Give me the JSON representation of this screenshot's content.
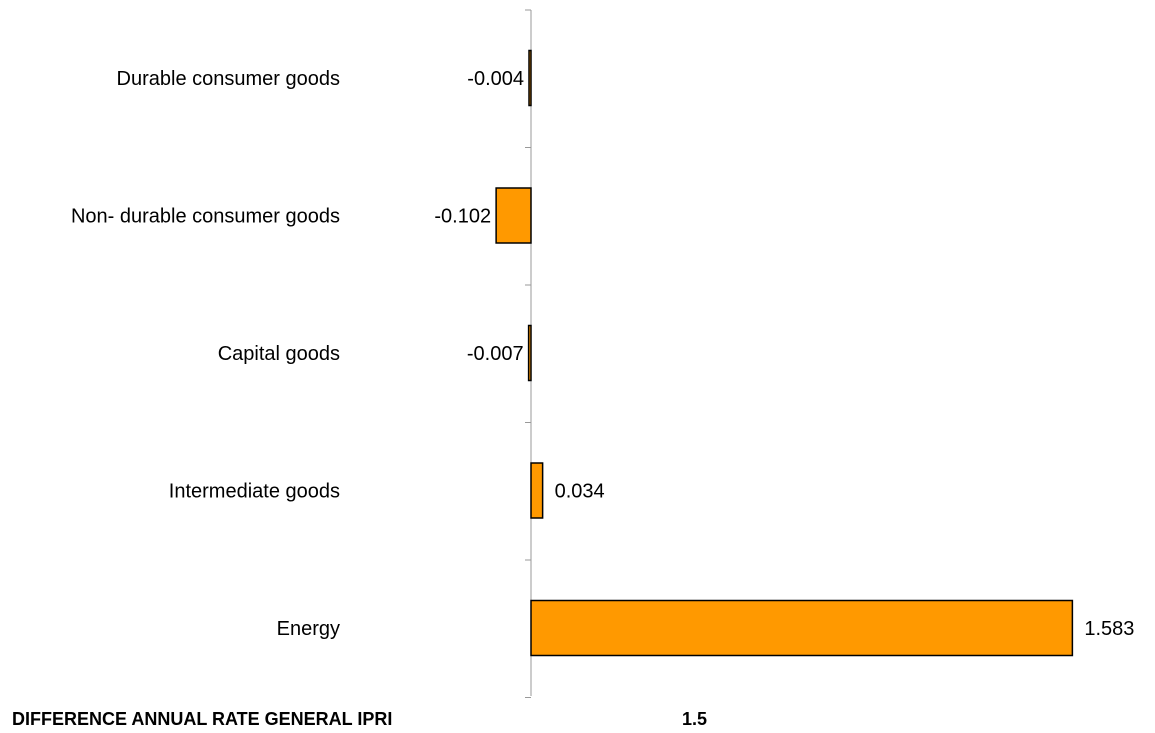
{
  "chart_data": {
    "type": "bar",
    "orientation": "horizontal",
    "categories": [
      "Durable consumer goods",
      "Non- durable consumer goods",
      "Capital goods",
      "Intermediate goods",
      "Energy"
    ],
    "values": [
      -0.004,
      -0.102,
      -0.007,
      0.034,
      1.583
    ],
    "value_labels": [
      "-0.004",
      "-0.102",
      "-0.007",
      "0.034",
      "1.583"
    ],
    "title": "",
    "xlabel": "",
    "ylabel": "",
    "bar_color": "#FF9900",
    "bar_outline_color": "#000000",
    "grid": false,
    "legend": "none",
    "footer": {
      "label": "DIFFERENCE ANNUAL RATE GENERAL IPRI",
      "value": "1.5"
    }
  }
}
